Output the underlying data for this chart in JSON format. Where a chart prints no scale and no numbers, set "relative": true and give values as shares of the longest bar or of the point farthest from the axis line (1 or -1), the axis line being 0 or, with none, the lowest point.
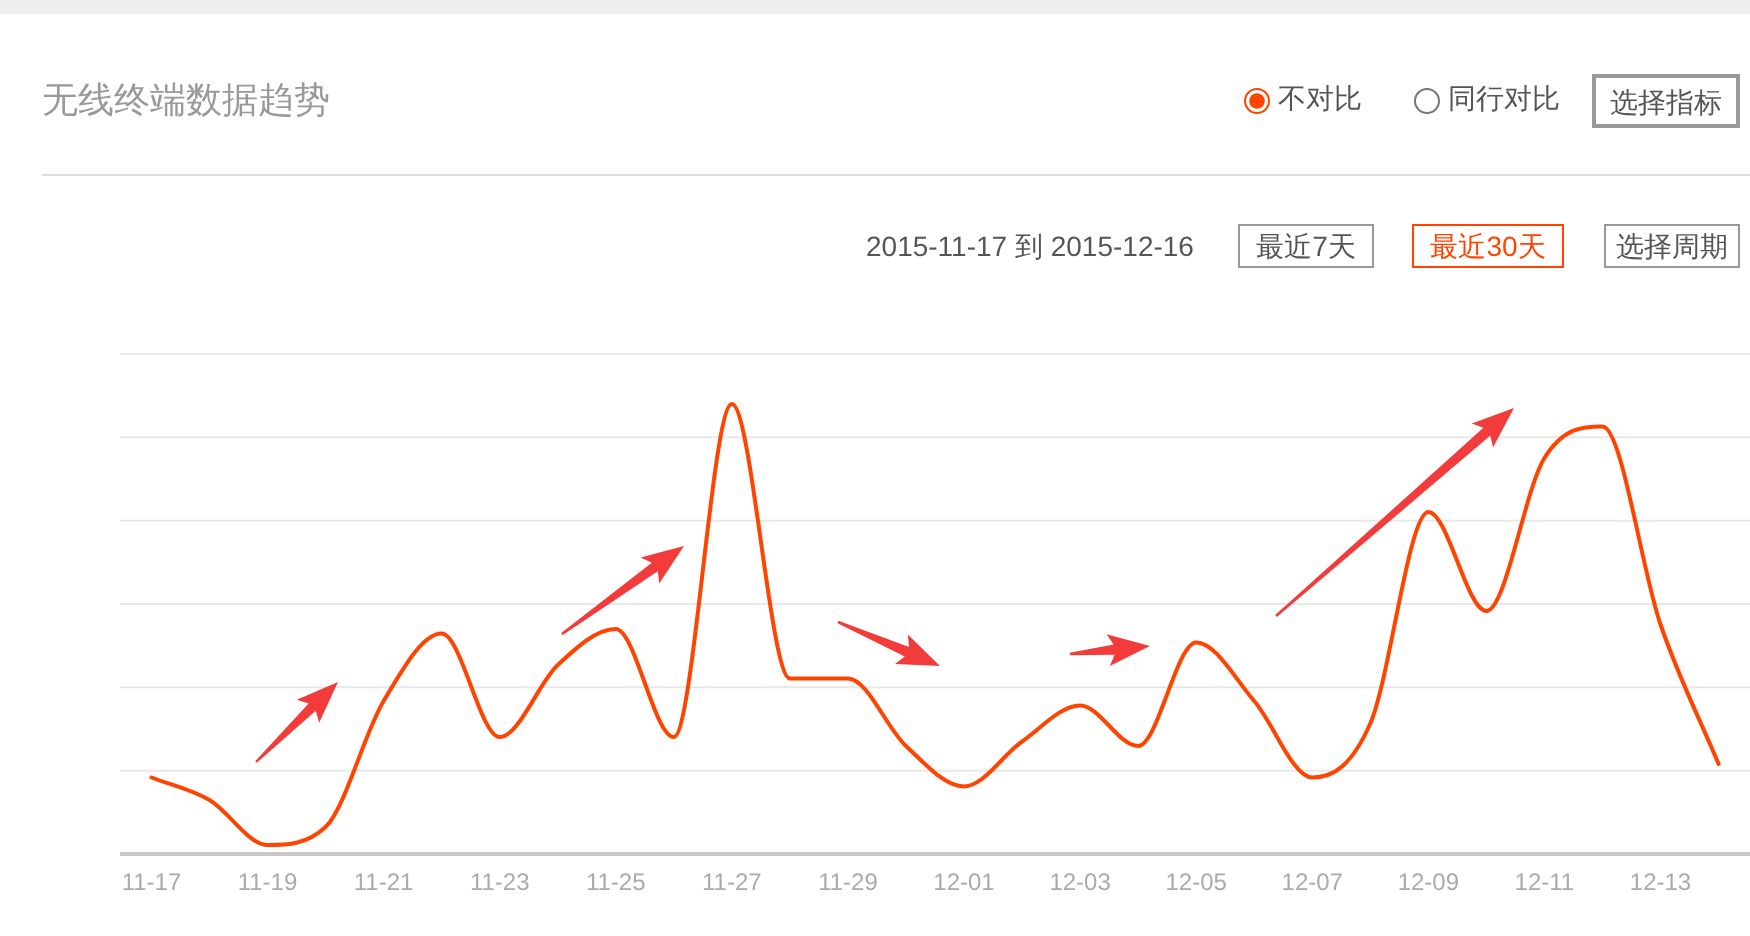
{
  "chart_data": {
    "type": "line",
    "title": "无线终端数据趋势",
    "x": [
      "2015-11-17",
      "2015-11-18",
      "2015-11-19",
      "2015-11-20",
      "2015-11-21",
      "2015-11-22",
      "2015-11-23",
      "2015-11-24",
      "2015-11-25",
      "2015-11-26",
      "2015-11-27",
      "2015-11-28",
      "2015-11-29",
      "2015-11-30",
      "2015-12-01",
      "2015-12-02",
      "2015-12-03",
      "2015-12-04",
      "2015-12-05",
      "2015-12-06",
      "2015-12-07",
      "2015-12-08",
      "2015-12-09",
      "2015-12-10",
      "2015-12-11",
      "2015-12-12",
      "2015-12-13",
      "2015-12-14"
    ],
    "series": [
      {
        "color": "#ff4400",
        "values": [
          0.17,
          0.12,
          0.02,
          0.06,
          0.34,
          0.49,
          0.26,
          0.42,
          0.5,
          0.26,
          1.0,
          0.39,
          0.39,
          0.24,
          0.15,
          0.25,
          0.33,
          0.24,
          0.47,
          0.34,
          0.17,
          0.29,
          0.76,
          0.54,
          0.88,
          0.95,
          0.51,
          0.2
        ]
      }
    ],
    "relative": true,
    "xlim": [
      "2015-11-16T11:00",
      "2015-12-14T13:00"
    ],
    "xticks": [
      {
        "value": "2015-11-17",
        "label": "11-17"
      },
      {
        "value": "2015-11-19",
        "label": "11-19"
      },
      {
        "value": "2015-11-21",
        "label": "11-21"
      },
      {
        "value": "2015-11-23",
        "label": "11-23"
      },
      {
        "value": "2015-11-25",
        "label": "11-25"
      },
      {
        "value": "2015-11-27",
        "label": "11-27"
      },
      {
        "value": "2015-11-29",
        "label": "11-29"
      },
      {
        "value": "2015-12-01",
        "label": "12-01"
      },
      {
        "value": "2015-12-03",
        "label": "12-03"
      },
      {
        "value": "2015-12-05",
        "label": "12-05"
      },
      {
        "value": "2015-12-07",
        "label": "12-07"
      },
      {
        "value": "2015-12-09",
        "label": "12-09"
      },
      {
        "value": "2015-12-11",
        "label": "12-11"
      },
      {
        "value": "2015-12-13",
        "label": "12-13"
      }
    ],
    "grid": "y",
    "annotations": [
      "不对比",
      "同行对比",
      "选择指标",
      "2015-11-17 到 2015-12-16",
      "最近7天",
      "最近30天",
      "选择周期"
    ]
  }
}
